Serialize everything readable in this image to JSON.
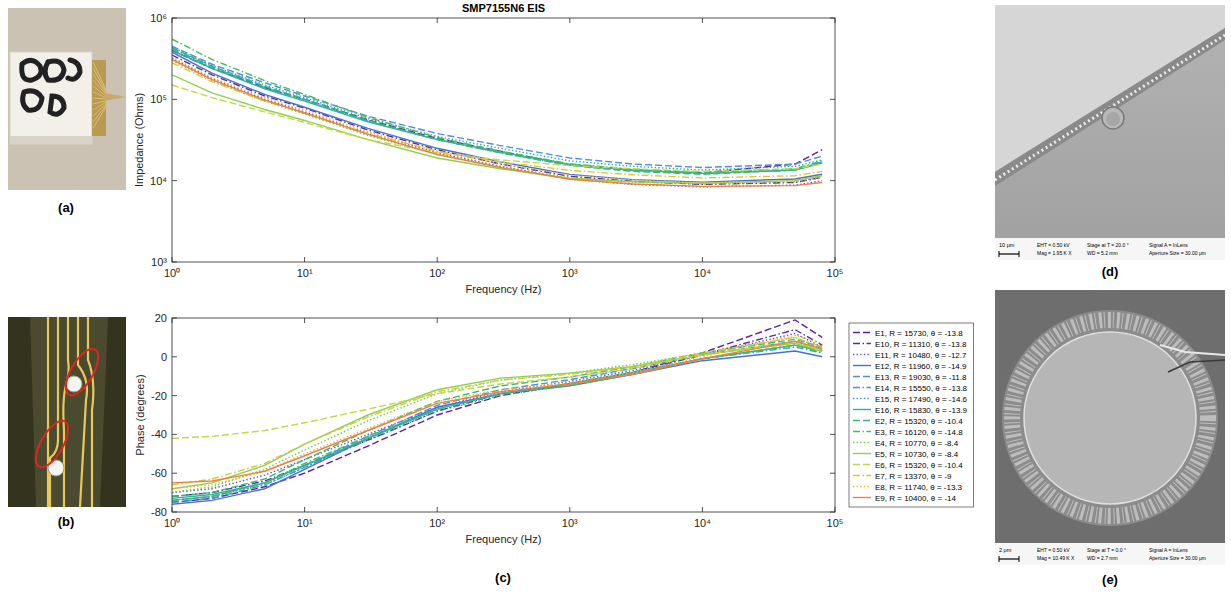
{
  "panels": {
    "a": "(a)",
    "b": "(b)",
    "c": "(c)",
    "d": "(d)",
    "e": "(e)"
  },
  "sem": [
    {
      "scale_bar": "10 μm",
      "columns": [
        [
          "EHT = 0.50 kV",
          "Mag = 1.95 K X"
        ],
        [
          "Stage at T = 20.0 °",
          "WD = 5.2 mm"
        ],
        [
          "Signal A = InLens",
          "Aperture Size = 30.00 μm"
        ]
      ]
    },
    {
      "scale_bar": "2 μm",
      "columns": [
        [
          "EHT = 0.50 kV",
          "Mag = 10.49 K X"
        ],
        [
          "Stage at T = 0.0 °",
          "WD = 2.7 mm"
        ],
        [
          "Signal A = InLens",
          "Aperture Size = 30.00 μm"
        ]
      ]
    }
  ],
  "chart_data": [
    {
      "type": "line",
      "title": "SMP7155N6 EIS",
      "x_label": "Frequency (Hz)",
      "y_label": "Impedance (Ohms)",
      "log": true,
      "x": [
        1,
        2,
        5,
        10,
        30,
        100,
        300,
        1000,
        3000,
        10000,
        50000,
        80000
      ],
      "xlim": [
        1,
        100000
      ],
      "xticks": [
        {
          "value": 1,
          "label": "10⁰"
        },
        {
          "value": 10,
          "label": "10¹"
        },
        {
          "value": 100,
          "label": "10²"
        },
        {
          "value": 1000,
          "label": "10³"
        },
        {
          "value": 10000,
          "label": "10⁴"
        },
        {
          "value": 100000,
          "label": "10⁵"
        }
      ],
      "ylim": [
        1000,
        1000000
      ],
      "yticks": [
        {
          "value": 1000,
          "label": "10³"
        },
        {
          "value": 10000,
          "label": "10⁴"
        },
        {
          "value": 100000,
          "label": "10⁵"
        },
        {
          "value": 1000000,
          "label": "10⁶"
        }
      ],
      "series": [
        {
          "color": "#6a1b9a",
          "line_style": "dashed",
          "values": [
            400000,
            240000,
            140000,
            100000,
            56000,
            33000,
            23000,
            15730,
            13500,
            12500,
            16000,
            24000
          ]
        },
        {
          "color": "#5a2d91",
          "line_style": "dashdot",
          "values": [
            350000,
            200000,
            110000,
            78000,
            42000,
            24000,
            16000,
            11310,
            9800,
            9000,
            9500,
            11000
          ]
        },
        {
          "color": "#5b4fcf",
          "line_style": "dotted",
          "values": [
            320000,
            180000,
            100000,
            70000,
            38000,
            22000,
            15000,
            10480,
            9000,
            8400,
            8800,
            10000
          ]
        },
        {
          "color": "#4a6fd6",
          "line_style": "solid",
          "values": [
            380000,
            210000,
            115000,
            80000,
            44000,
            25000,
            17000,
            11960,
            10300,
            9600,
            10500,
            12000
          ]
        },
        {
          "color": "#4a8fe0",
          "line_style": "dashed",
          "values": [
            450000,
            270000,
            160000,
            110000,
            62000,
            38000,
            27000,
            19030,
            16000,
            14500,
            16000,
            20000
          ]
        },
        {
          "color": "#3a9ad0",
          "line_style": "dashdot",
          "values": [
            420000,
            250000,
            140000,
            98000,
            54000,
            32000,
            22000,
            15550,
            13300,
            12200,
            13500,
            17000
          ]
        },
        {
          "color": "#2aa6b8",
          "line_style": "dotted",
          "values": [
            440000,
            260000,
            150000,
            105000,
            58000,
            35000,
            25000,
            17490,
            15000,
            13500,
            15000,
            18000
          ]
        },
        {
          "color": "#2cb39a",
          "line_style": "solid",
          "values": [
            400000,
            240000,
            135000,
            95000,
            53000,
            32000,
            22500,
            15830,
            13500,
            12300,
            13500,
            16500
          ]
        },
        {
          "color": "#35b87a",
          "line_style": "dashed",
          "values": [
            430000,
            255000,
            145000,
            100000,
            55000,
            32000,
            22000,
            15320,
            13000,
            12000,
            13500,
            17000
          ]
        },
        {
          "color": "#3fbf60",
          "line_style": "dashdot",
          "values": [
            550000,
            310000,
            170000,
            115000,
            60000,
            34000,
            23000,
            16120,
            13800,
            12600,
            14000,
            17500
          ]
        },
        {
          "color": "#6cc84a",
          "line_style": "dotted",
          "values": [
            300000,
            170000,
            95000,
            66000,
            36000,
            21000,
            15000,
            10770,
            9600,
            9100,
            9700,
            11000
          ]
        },
        {
          "color": "#8fd14a",
          "line_style": "solid",
          "values": [
            200000,
            120000,
            75000,
            55000,
            32000,
            19000,
            14000,
            10730,
            9700,
            9300,
            10000,
            11500
          ]
        },
        {
          "color": "#c0d84a",
          "line_style": "dashed",
          "values": [
            150000,
            105000,
            70000,
            52000,
            32000,
            22000,
            18000,
            15320,
            14000,
            13000,
            14000,
            16000
          ]
        },
        {
          "color": "#d8c838",
          "line_style": "dashdot",
          "values": [
            280000,
            165000,
            95000,
            68000,
            38000,
            23000,
            17000,
            13370,
            11800,
            10800,
            11500,
            13000
          ]
        },
        {
          "color": "#f0b430",
          "line_style": "dotted",
          "values": [
            330000,
            185000,
            105000,
            73000,
            40000,
            23000,
            16000,
            11740,
            10200,
            9400,
            10000,
            11500
          ]
        },
        {
          "color": "#f08040",
          "line_style": "solid",
          "values": [
            310000,
            175000,
            98000,
            68000,
            37000,
            21000,
            14500,
            10400,
            9100,
            8500,
            8700,
            9500
          ]
        }
      ]
    },
    {
      "type": "line",
      "x_label": "Frequency (Hz)",
      "y_label": "Phase (degrees)",
      "log": "x",
      "legend": "right",
      "x": [
        1,
        2,
        5,
        10,
        30,
        100,
        300,
        1000,
        3000,
        10000,
        50000,
        80000
      ],
      "xlim": [
        1,
        100000
      ],
      "xticks": [
        {
          "value": 1,
          "label": "10⁰"
        },
        {
          "value": 10,
          "label": "10¹"
        },
        {
          "value": 100,
          "label": "10²"
        },
        {
          "value": 1000,
          "label": "10³"
        },
        {
          "value": 10000,
          "label": "10⁴"
        },
        {
          "value": 100000,
          "label": "10⁵"
        }
      ],
      "ylim": [
        -80,
        20
      ],
      "yticks": [
        -80,
        -60,
        -40,
        -20,
        0,
        20
      ],
      "series": [
        {
          "name": "E1, R = 15730, θ = -13.8",
          "color": "#6a1b9a",
          "line_style": "dashed",
          "values": [
            -75,
            -73,
            -67,
            -60,
            -46,
            -30,
            -20,
            -13.8,
            -8,
            2,
            19,
            10
          ]
        },
        {
          "name": "E10, R = 11310, θ = -13.8",
          "color": "#5a2d91",
          "line_style": "dashdot",
          "values": [
            -72,
            -70,
            -64,
            -56,
            -43,
            -28,
            -19,
            -13.8,
            -8,
            1,
            14,
            6
          ]
        },
        {
          "name": "E11, R = 10480, θ = -12.7",
          "color": "#5b4fcf",
          "line_style": "dotted",
          "values": [
            -70,
            -68,
            -61,
            -53,
            -40,
            -26,
            -18,
            -12.7,
            -7,
            1,
            12,
            5
          ]
        },
        {
          "name": "E12, R = 11960, θ = -14.9",
          "color": "#4a6fd6",
          "line_style": "solid",
          "values": [
            -76,
            -74,
            -68,
            -58,
            -42,
            -26,
            -19,
            -14.9,
            -9,
            -2,
            3,
            0
          ]
        },
        {
          "name": "E13, R = 19030, θ = -11.8",
          "color": "#4a8fe0",
          "line_style": "dashed",
          "values": [
            -74,
            -72,
            -65,
            -56,
            -41,
            -25,
            -17,
            -11.8,
            -6,
            1,
            8,
            4
          ]
        },
        {
          "name": "E14, R = 15550, θ = -13.8",
          "color": "#3a9ad0",
          "line_style": "dashdot",
          "values": [
            -75,
            -73,
            -66,
            -57,
            -42,
            -27,
            -19,
            -13.8,
            -8,
            -1,
            5,
            2
          ]
        },
        {
          "name": "E15, R = 17490, θ = -14.6",
          "color": "#2aa6b8",
          "line_style": "dotted",
          "values": [
            -74,
            -72,
            -66,
            -57,
            -43,
            -28,
            -20,
            -14.6,
            -9,
            -1,
            6,
            3
          ]
        },
        {
          "name": "E16, R = 15830, θ = -13.9",
          "color": "#2cb39a",
          "line_style": "solid",
          "values": [
            -73,
            -71,
            -65,
            -56,
            -42,
            -27,
            -19,
            -13.9,
            -8,
            -1,
            6,
            3
          ]
        },
        {
          "name": "E2, R = 15320, θ = -10.4",
          "color": "#35b87a",
          "line_style": "dashed",
          "values": [
            -72,
            -70,
            -63,
            -53,
            -38,
            -23,
            -15,
            -10.4,
            -5,
            2,
            9,
            5
          ]
        },
        {
          "name": "E3, R = 16120, θ = -14.8",
          "color": "#3fbf60",
          "line_style": "dashdot",
          "values": [
            -74,
            -72,
            -65,
            -55,
            -41,
            -27,
            -19,
            -14.8,
            -9,
            -1,
            6,
            2
          ]
        },
        {
          "name": "E4, R = 10770, θ = -8.4",
          "color": "#6cc84a",
          "line_style": "dotted",
          "values": [
            -70,
            -67,
            -58,
            -48,
            -33,
            -19,
            -12,
            -8.4,
            -4,
            2,
            10,
            4
          ]
        },
        {
          "name": "E5, R = 10730, θ = -8.4",
          "color": "#8fd14a",
          "line_style": "solid",
          "values": [
            -68,
            -65,
            -56,
            -45,
            -30,
            -17,
            -11,
            -8.4,
            -5,
            1,
            7,
            3
          ]
        },
        {
          "name": "E6, R = 15320, θ = -10.4",
          "color": "#c0d84a",
          "line_style": "dashed",
          "values": [
            -42,
            -41,
            -38,
            -34,
            -27,
            -19,
            -14,
            -10.4,
            -6,
            1,
            8,
            3
          ]
        },
        {
          "name": "E7, R = 13370, θ = -9",
          "color": "#d8c838",
          "line_style": "dashdot",
          "values": [
            -66,
            -63,
            -55,
            -45,
            -31,
            -18,
            -12,
            -9,
            -5,
            2,
            10,
            5
          ]
        },
        {
          "name": "E8, R = 11740, θ = -13.3",
          "color": "#f0b430",
          "line_style": "dotted",
          "values": [
            -68,
            -66,
            -59,
            -50,
            -37,
            -23,
            -17,
            -13.3,
            -8,
            0,
            11,
            7
          ]
        },
        {
          "name": "E9, R = 10400, θ = -14",
          "color": "#f08040",
          "line_style": "solid",
          "values": [
            -65,
            -64,
            -59,
            -51,
            -38,
            -24,
            -18,
            -14,
            -9,
            -1,
            8,
            4
          ]
        }
      ]
    }
  ]
}
